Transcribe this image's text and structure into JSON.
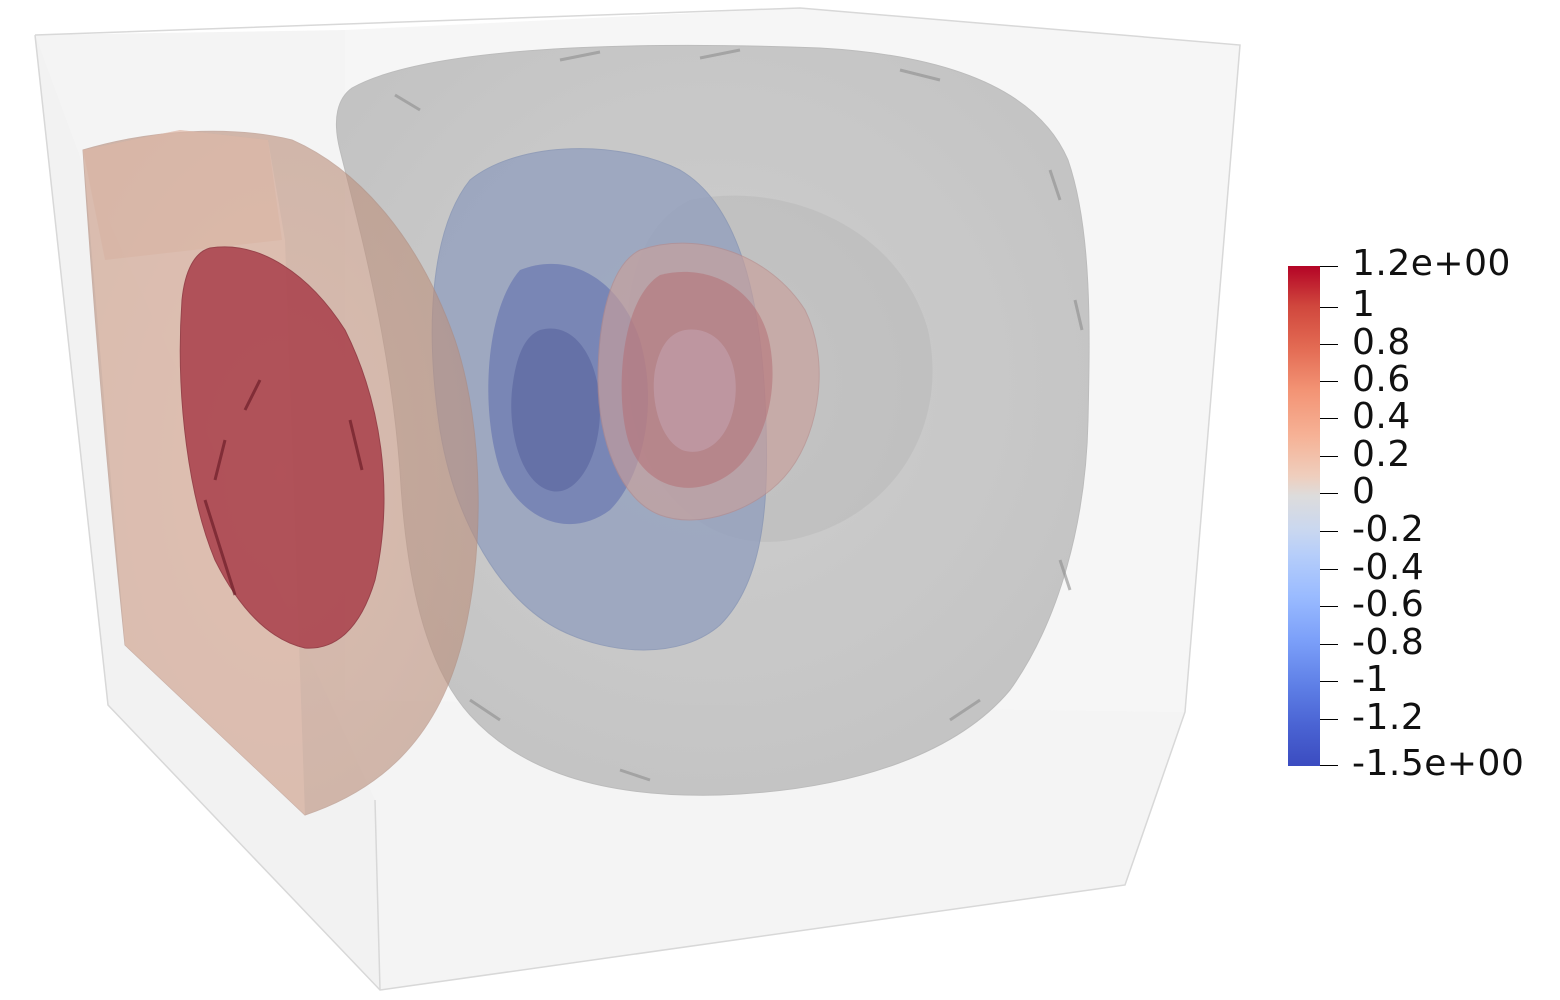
{
  "colorbar": {
    "colors": {
      "top": "#b40426",
      "mid": "#dddcdc",
      "bottom": "#3b4cc0"
    },
    "labels": [
      "1.2e+00",
      "1",
      "0.8",
      "0.6",
      "0.4",
      "0.2",
      "0",
      "-0.2",
      "-0.4",
      "-0.6",
      "-0.8",
      "-1",
      "-1.2",
      "-1.5e+00"
    ]
  }
}
